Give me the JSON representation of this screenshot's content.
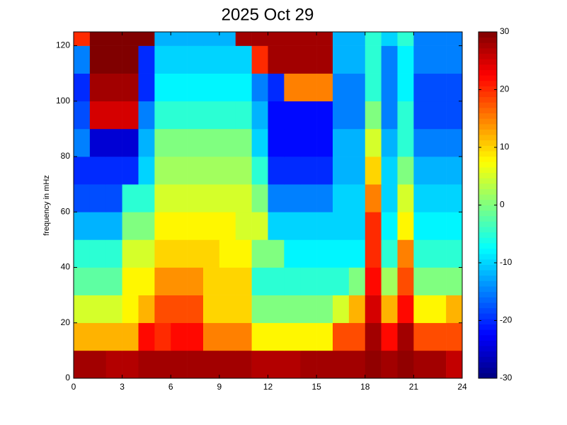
{
  "chart_data": {
    "type": "heatmap",
    "title": "2025 Oct 29",
    "y_label": "frequency in mHz",
    "colormap": "jet",
    "xbins": [
      0,
      1,
      2,
      3,
      4,
      5,
      6,
      7,
      8,
      9,
      10,
      11,
      12,
      13,
      14,
      15,
      16,
      17,
      18,
      19,
      20,
      21,
      22,
      23,
      24
    ],
    "ybins": [
      0,
      10,
      20,
      30,
      40,
      50,
      60,
      70,
      80,
      90,
      100,
      110,
      120,
      125
    ],
    "values": [
      [
        28,
        28,
        27,
        27,
        28,
        28,
        28,
        28,
        28,
        28,
        28,
        27,
        27,
        27,
        28,
        28,
        28,
        28,
        29,
        28,
        29,
        28,
        28,
        26
      ],
      [
        12,
        12,
        12,
        12,
        22,
        20,
        22,
        22,
        15,
        15,
        15,
        8,
        8,
        8,
        8,
        8,
        18,
        18,
        28,
        22,
        28,
        18,
        18,
        18
      ],
      [
        5,
        5,
        5,
        8,
        12,
        18,
        18,
        18,
        10,
        10,
        10,
        0,
        0,
        0,
        0,
        0,
        5,
        12,
        25,
        12,
        22,
        8,
        8,
        12
      ],
      [
        -2,
        -2,
        -2,
        8,
        8,
        14,
        14,
        14,
        10,
        10,
        10,
        -5,
        -5,
        -5,
        -5,
        -5,
        -5,
        0,
        22,
        2,
        18,
        0,
        0,
        0
      ],
      [
        -5,
        -5,
        -5,
        5,
        5,
        10,
        10,
        10,
        10,
        8,
        8,
        0,
        0,
        -8,
        -8,
        -8,
        -8,
        -8,
        20,
        -5,
        15,
        -5,
        -5,
        -5
      ],
      [
        -12,
        -12,
        -12,
        0,
        0,
        8,
        8,
        8,
        8,
        8,
        5,
        5,
        -10,
        -10,
        -10,
        -10,
        -10,
        -10,
        20,
        -8,
        8,
        -8,
        -8,
        -8
      ],
      [
        -18,
        -18,
        -18,
        -5,
        -5,
        5,
        5,
        5,
        5,
        5,
        5,
        0,
        -15,
        -15,
        -15,
        -15,
        -10,
        -10,
        15,
        -10,
        5,
        -10,
        -10,
        -10
      ],
      [
        -20,
        -20,
        -20,
        -20,
        -10,
        2,
        2,
        2,
        2,
        2,
        2,
        -5,
        -20,
        -20,
        -20,
        -20,
        -12,
        -12,
        10,
        -10,
        0,
        -12,
        -12,
        -12
      ],
      [
        -15,
        -25,
        -25,
        -25,
        -12,
        0,
        0,
        0,
        0,
        0,
        0,
        -10,
        -22,
        -22,
        -22,
        -22,
        -12,
        -12,
        5,
        -12,
        -5,
        -15,
        -15,
        -15
      ],
      [
        -18,
        25,
        25,
        25,
        -15,
        -5,
        -5,
        -5,
        -5,
        -5,
        -5,
        -12,
        -22,
        -22,
        -22,
        -22,
        -15,
        -15,
        0,
        -15,
        -5,
        -18,
        -18,
        -18
      ],
      [
        -20,
        28,
        28,
        28,
        -20,
        -8,
        -8,
        -8,
        -8,
        -8,
        -8,
        -15,
        -20,
        15,
        15,
        15,
        -15,
        -15,
        -5,
        -15,
        -8,
        -18,
        -18,
        -18
      ],
      [
        -15,
        30,
        30,
        30,
        -20,
        -10,
        -10,
        -10,
        -10,
        -10,
        -10,
        20,
        28,
        28,
        28,
        28,
        -12,
        -12,
        -5,
        -15,
        -8,
        -15,
        -15,
        -15
      ],
      [
        20,
        30,
        30,
        30,
        30,
        -12,
        -12,
        -12,
        -12,
        -12,
        28,
        28,
        28,
        28,
        28,
        28,
        -12,
        -12,
        -5,
        -10,
        -5,
        -15,
        -15,
        -15
      ]
    ],
    "xlim": [
      0,
      24
    ],
    "xticks": [
      0,
      3,
      6,
      9,
      12,
      15,
      18,
      21,
      24
    ],
    "ylim": [
      0,
      125
    ],
    "yticks": [
      0,
      20,
      40,
      60,
      80,
      100,
      120
    ],
    "clim": [
      -30,
      30
    ],
    "cticks": [
      -30,
      -20,
      -10,
      0,
      10,
      20,
      30
    ]
  }
}
